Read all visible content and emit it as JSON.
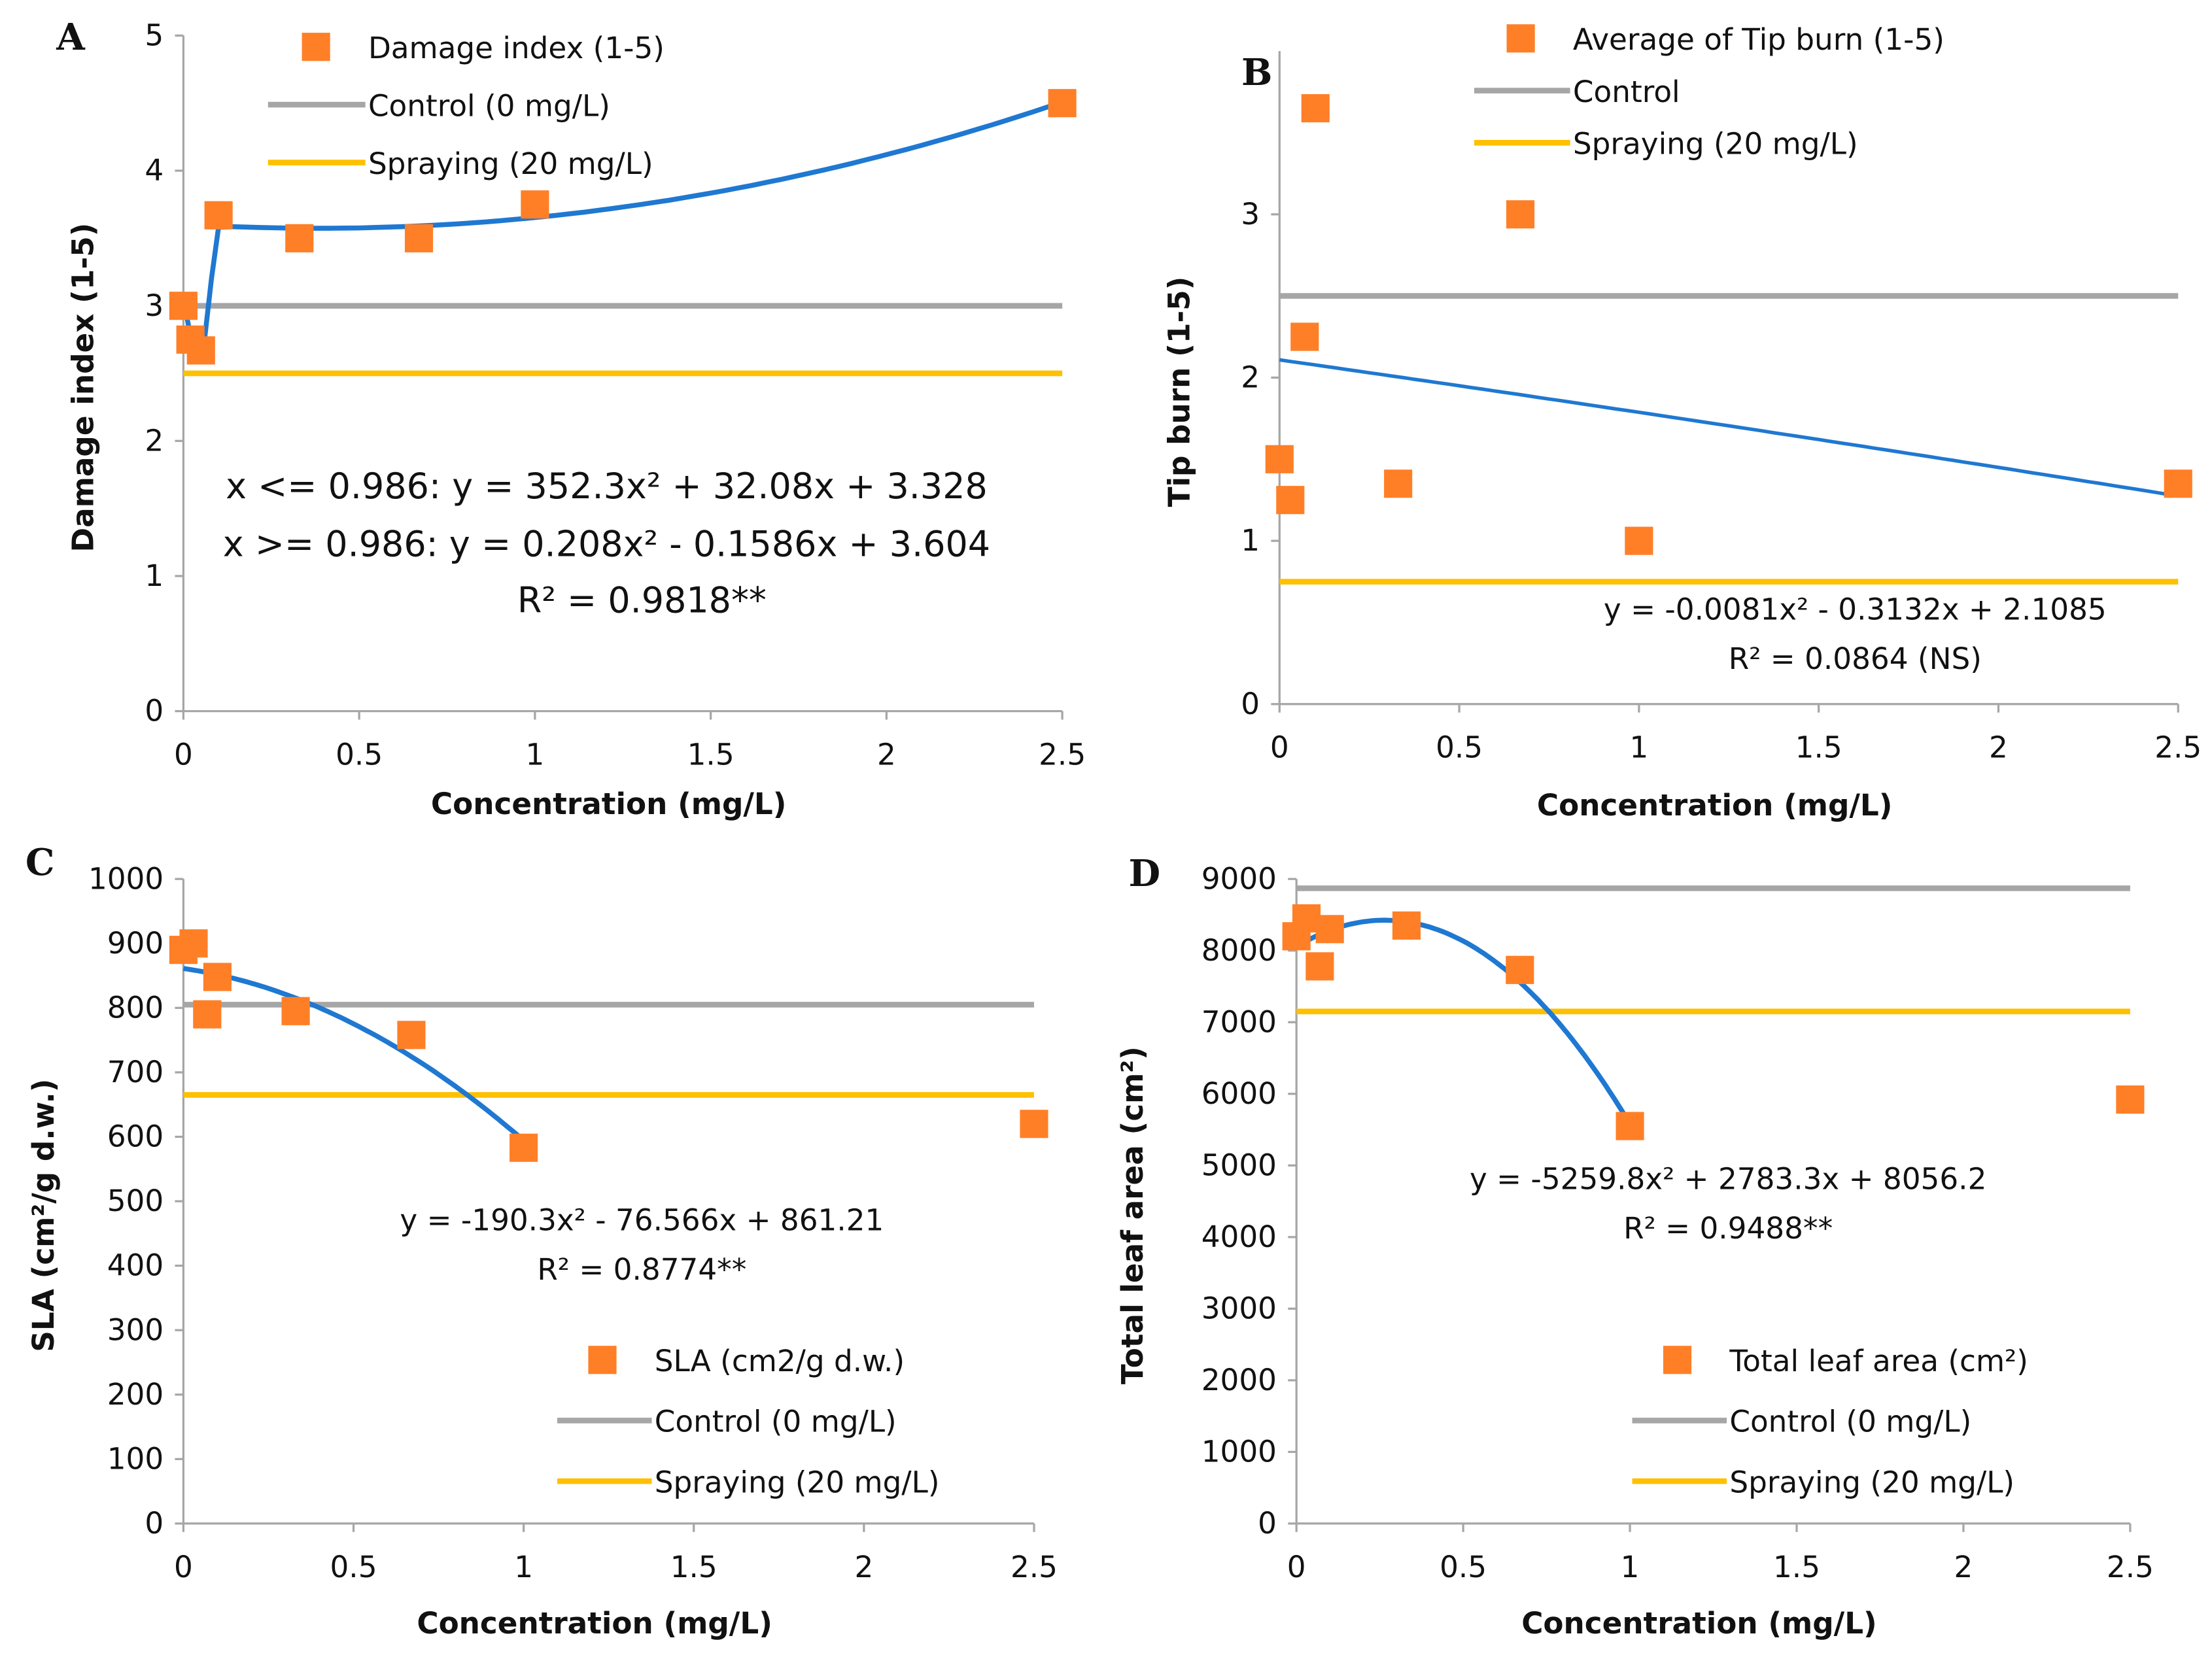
{
  "chart_data": [
    {
      "panel": "A",
      "type": "scatter",
      "xlabel": "Concentration (mg/L)",
      "ylabel": "Damage index (1-5)",
      "xlim": [
        0,
        2.5
      ],
      "ylim": [
        0,
        5
      ],
      "xticks": [
        "0",
        "0.5",
        "1",
        "1.5",
        "2",
        "2.5"
      ],
      "yticks": [
        "0",
        "1",
        "2",
        "3",
        "4",
        "5"
      ],
      "grid": false,
      "series": [
        {
          "name": "Damage index (1-5)",
          "x": [
            0,
            0.02,
            0.05,
            0.1,
            0.33,
            0.67,
            1,
            2.5
          ],
          "y": [
            3.0,
            2.75,
            2.67,
            3.67,
            3.5,
            3.5,
            3.75,
            4.5
          ]
        }
      ],
      "control": {
        "name": "Control (0 mg/L)",
        "value": 3.0
      },
      "spraying": {
        "name": "Spraying (20 mg/L)",
        "value": 2.5
      },
      "trend": {
        "type": "piecewise-polynomial",
        "equations": [
          "x <= 0.986: y = 352.3x² + 32.08x + 3.328",
          "x >= 0.986: y = 0.208x² - 0.1586x + 3.604",
          "R² = 0.9818**"
        ]
      },
      "legend_position": "top"
    },
    {
      "panel": "B",
      "type": "scatter",
      "xlabel": "Concentration (mg/L)",
      "ylabel": "Tip burn (1-5)",
      "xlim": [
        0,
        2.5
      ],
      "ylim": [
        0,
        4
      ],
      "xticks": [
        "0",
        "0.5",
        "1",
        "1.5",
        "2",
        "2.5"
      ],
      "yticks": [
        "0",
        "1",
        "2",
        "3"
      ],
      "grid": false,
      "series": [
        {
          "name": "Average of Tip burn (1-5)",
          "x": [
            0,
            0.03,
            0.07,
            0.1,
            0.33,
            0.67,
            1,
            2.5
          ],
          "y": [
            1.5,
            1.25,
            2.25,
            3.65,
            1.35,
            3.0,
            1.0,
            1.35
          ]
        }
      ],
      "control": {
        "name": "Control",
        "value": 2.5
      },
      "spraying": {
        "name": "Spraying (20 mg/L)",
        "value": 0.75
      },
      "trend": {
        "type": "polynomial",
        "coef": [
          -0.0081,
          -0.3132,
          2.1085
        ],
        "range": [
          0,
          2.5
        ],
        "equations": [
          "y = -0.0081x² - 0.3132x + 2.1085",
          "R² = 0.0864 (NS)"
        ]
      },
      "legend_position": "top-right"
    },
    {
      "panel": "C",
      "type": "scatter",
      "xlabel": "Concentration (mg/L)",
      "ylabel": "SLA (cm²/g d.w.)",
      "xlim": [
        0,
        2.5
      ],
      "ylim": [
        0,
        1000
      ],
      "xticks": [
        "0",
        "0.5",
        "1",
        "1.5",
        "2",
        "2.5"
      ],
      "yticks": [
        "0",
        "100",
        "200",
        "300",
        "400",
        "500",
        "600",
        "700",
        "800",
        "900",
        "1000"
      ],
      "grid": false,
      "series": [
        {
          "name": "SLA (cm2/g d.w.)",
          "x": [
            0,
            0.03,
            0.07,
            0.1,
            0.33,
            0.67,
            1,
            2.5
          ],
          "y": [
            890,
            900,
            790,
            848,
            795,
            758,
            583,
            620
          ]
        }
      ],
      "control": {
        "name": "Control (0 mg/L)",
        "value": 805
      },
      "spraying": {
        "name": "Spraying (20 mg/L)",
        "value": 665
      },
      "trend": {
        "type": "polynomial",
        "coef": [
          -190.3,
          -76.566,
          861.21
        ],
        "range": [
          0,
          1
        ],
        "equations": [
          "y = -190.3x² - 76.566x + 861.21",
          "R² = 0.8774**"
        ]
      },
      "legend_position": "bottom-right"
    },
    {
      "panel": "D",
      "type": "scatter",
      "xlabel": "Concentration (mg/L)",
      "ylabel": "Total leaf area (cm²)",
      "xlim": [
        0,
        2.5
      ],
      "ylim": [
        0,
        9000
      ],
      "xticks": [
        "0",
        "0.5",
        "1",
        "1.5",
        "2",
        "2.5"
      ],
      "yticks": [
        "0",
        "1000",
        "2000",
        "3000",
        "4000",
        "5000",
        "6000",
        "7000",
        "8000",
        "9000"
      ],
      "grid": false,
      "series": [
        {
          "name": "Total leaf area  (cm²)",
          "x": [
            0,
            0.03,
            0.07,
            0.1,
            0.33,
            0.67,
            1,
            2.5
          ],
          "y": [
            8200,
            8450,
            7780,
            8300,
            8350,
            7730,
            5550,
            5920
          ]
        }
      ],
      "control": {
        "name": "Control (0 mg/L)",
        "value": 8870
      },
      "spraying": {
        "name": "Spraying (20 mg/L)",
        "value": 7150
      },
      "trend": {
        "type": "polynomial",
        "coef": [
          -5259.8,
          2783.3,
          8056.2
        ],
        "range": [
          0,
          1
        ],
        "equations": [
          "y = -5259.8x² + 2783.3x + 8056.2",
          "R² = 0.9488**"
        ]
      },
      "legend_position": "bottom-right"
    }
  ],
  "colors": {
    "points": "#ff7f27",
    "control": "#a6a6a6",
    "spraying": "#ffc000",
    "trend": "#1f78d1",
    "axis": "#a6a6a6"
  }
}
